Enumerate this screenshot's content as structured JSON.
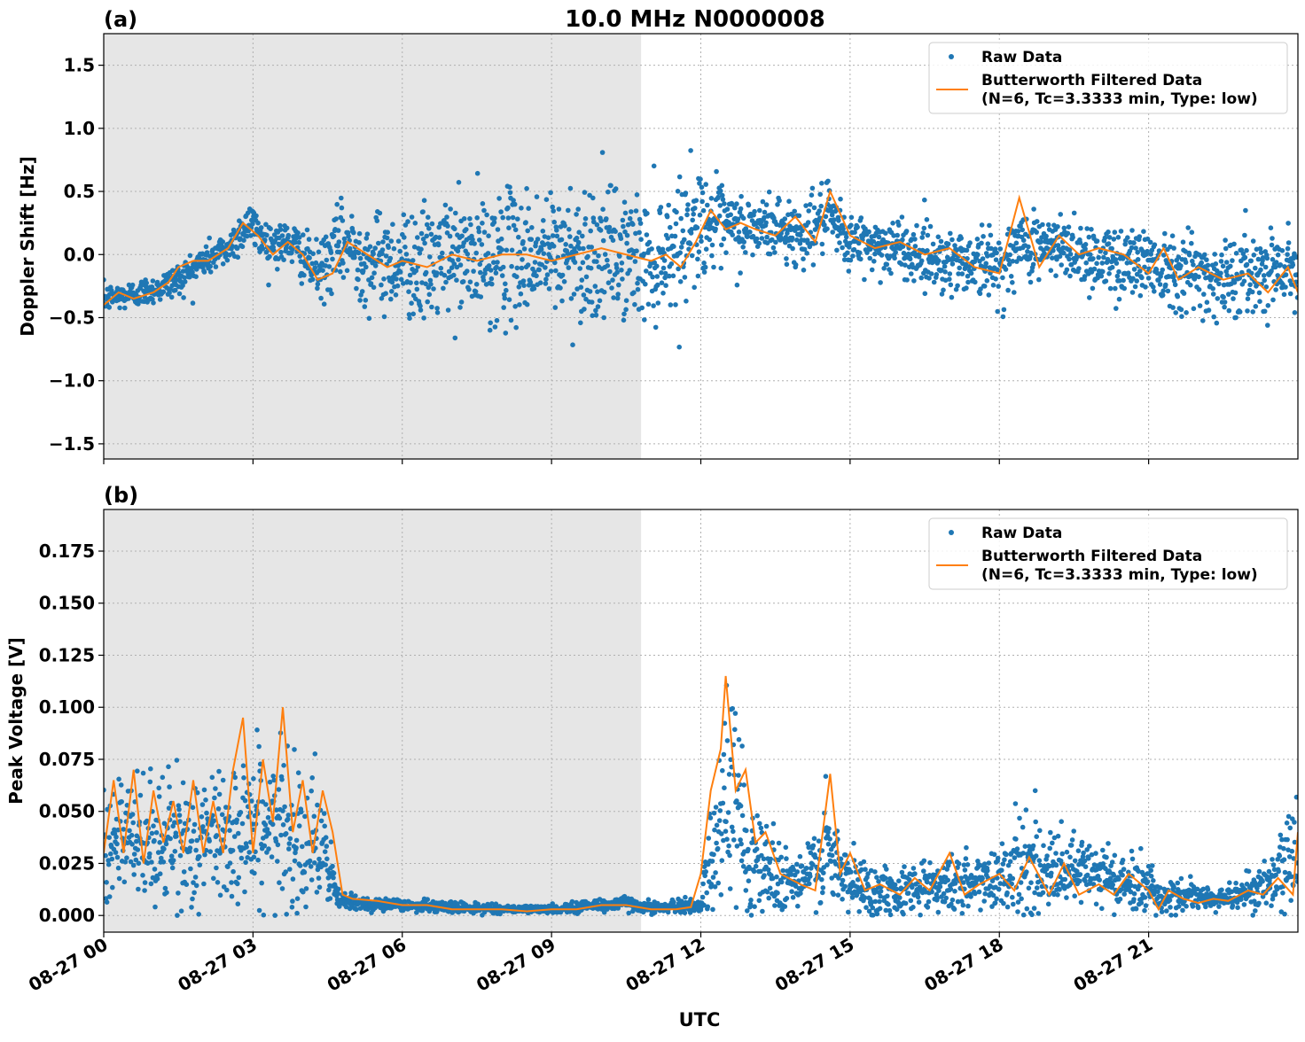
{
  "figure_title": "10.0 MHz N0000008",
  "xlabel": "UTC",
  "colors": {
    "raw": "#1f77b4",
    "filtered": "#ff7f0e",
    "shade": "#e6e6e6",
    "grid": "#b0b0b0"
  },
  "legend": {
    "raw_label": "Raw Data",
    "filtered_line1": "Butterworth Filtered Data",
    "filtered_line2": "(N=6, Tc=3.3333 min, Type: low)"
  },
  "chart_data": [
    {
      "id": "a",
      "type": "scatter",
      "panel_label": "(a)",
      "ylabel": "Doppler Shift [Hz]",
      "xlim_hours": [
        0,
        24
      ],
      "ylim": [
        -1.62,
        1.75
      ],
      "yticks": [
        -1.5,
        -1.0,
        -0.5,
        0.0,
        0.5,
        1.0,
        1.5
      ],
      "ytick_labels": [
        "−1.5",
        "−1.0",
        "−0.5",
        "0.0",
        "0.5",
        "1.0",
        "1.5"
      ],
      "shaded_span_hours": [
        0,
        10.8
      ],
      "grid": true,
      "legend_position": "upper right",
      "series": [
        {
          "name": "Raw Data",
          "style": "points",
          "x_hours": [
            0,
            0.5,
            1,
            1.5,
            2,
            2.5,
            2.9,
            3.3,
            3.8,
            4.3,
            4.8,
            5.3,
            6,
            6.5,
            7,
            7.5,
            8,
            8.5,
            9,
            9.5,
            10,
            10.5,
            11,
            11.5,
            12,
            12.5,
            13,
            13.5,
            14,
            14.5,
            15,
            15.5,
            16,
            16.5,
            17,
            17.5,
            18,
            18.5,
            19,
            19.5,
            20,
            20.5,
            21,
            21.5,
            22,
            22.5,
            23,
            23.5,
            24
          ],
          "y_center": [
            -0.35,
            -0.32,
            -0.28,
            -0.2,
            -0.05,
            0.05,
            0.25,
            0.1,
            0.08,
            -0.15,
            0.1,
            -0.05,
            -0.05,
            -0.1,
            0.0,
            -0.05,
            0.0,
            0.0,
            0.0,
            0.02,
            0.0,
            0.0,
            -0.05,
            0.1,
            0.28,
            0.2,
            0.2,
            0.22,
            0.15,
            0.3,
            0.1,
            0.08,
            0.05,
            0.0,
            -0.05,
            -0.05,
            -0.1,
            0.1,
            0.05,
            0.05,
            -0.05,
            -0.05,
            -0.05,
            -0.1,
            -0.15,
            -0.2,
            -0.15,
            -0.1,
            -0.1
          ],
          "spread": [
            0.12,
            0.12,
            0.12,
            0.15,
            0.15,
            0.15,
            0.2,
            0.18,
            0.2,
            0.25,
            0.35,
            0.4,
            0.45,
            0.5,
            0.5,
            0.55,
            0.55,
            0.55,
            0.55,
            0.6,
            0.6,
            0.55,
            0.55,
            0.5,
            0.45,
            0.35,
            0.3,
            0.28,
            0.28,
            0.28,
            0.25,
            0.25,
            0.25,
            0.28,
            0.28,
            0.3,
            0.3,
            0.3,
            0.3,
            0.3,
            0.3,
            0.32,
            0.32,
            0.35,
            0.35,
            0.35,
            0.35,
            0.3,
            0.3
          ]
        },
        {
          "name": "Butterworth Filtered Data",
          "style": "line",
          "x_hours": [
            0,
            0.3,
            0.6,
            1,
            1.3,
            1.5,
            1.8,
            2.1,
            2.5,
            2.8,
            3.1,
            3.4,
            3.7,
            4,
            4.3,
            4.6,
            4.9,
            5.3,
            5.7,
            6,
            6.5,
            7,
            7.5,
            8,
            8.5,
            9,
            9.5,
            10,
            10.5,
            11,
            11.3,
            11.6,
            11.9,
            12.2,
            12.5,
            12.8,
            13.1,
            13.5,
            13.9,
            14.3,
            14.6,
            15,
            15.5,
            16,
            16.5,
            17,
            17.5,
            18,
            18.4,
            18.8,
            19.2,
            19.6,
            20,
            20.5,
            21,
            21.3,
            21.6,
            22,
            22.5,
            23,
            23.4,
            23.8,
            24
          ],
          "y_values": [
            -0.4,
            -0.3,
            -0.35,
            -0.3,
            -0.22,
            -0.1,
            -0.05,
            -0.05,
            0.05,
            0.25,
            0.15,
            0.0,
            0.1,
            0.0,
            -0.2,
            -0.15,
            0.1,
            0.0,
            -0.1,
            -0.05,
            -0.1,
            0.0,
            -0.05,
            0.0,
            0.0,
            -0.05,
            0.0,
            0.05,
            0.0,
            -0.05,
            0.0,
            -0.1,
            0.1,
            0.35,
            0.2,
            0.25,
            0.2,
            0.15,
            0.3,
            0.1,
            0.5,
            0.15,
            0.05,
            0.1,
            0.0,
            0.05,
            -0.1,
            -0.15,
            0.45,
            -0.1,
            0.15,
            0.0,
            0.05,
            0.0,
            -0.15,
            0.05,
            -0.2,
            -0.1,
            -0.2,
            -0.15,
            -0.3,
            -0.1,
            -0.3
          ]
        }
      ]
    },
    {
      "id": "b",
      "type": "scatter",
      "panel_label": "(b)",
      "ylabel": "Peak Voltage [V]",
      "xlim_hours": [
        0,
        24
      ],
      "ylim": [
        -0.008,
        0.195
      ],
      "yticks": [
        0.0,
        0.025,
        0.05,
        0.075,
        0.1,
        0.125,
        0.15,
        0.175
      ],
      "ytick_labels": [
        "0.000",
        "0.025",
        "0.050",
        "0.075",
        "0.100",
        "0.125",
        "0.150",
        "0.175"
      ],
      "xticks_hours": [
        0,
        3,
        6,
        9,
        12,
        15,
        18,
        21
      ],
      "xtick_labels": [
        "08-27 00",
        "08-27 03",
        "08-27 06",
        "08-27 09",
        "08-27 12",
        "08-27 15",
        "08-27 18",
        "08-27 21"
      ],
      "shaded_span_hours": [
        0,
        10.8
      ],
      "grid": true,
      "legend_position": "upper right",
      "series": [
        {
          "name": "Raw Data",
          "style": "points",
          "x_hours": [
            0,
            0.5,
            1,
            1.5,
            2,
            2.5,
            3,
            3.5,
            4,
            4.4,
            4.7,
            5,
            6,
            7,
            8,
            9,
            10,
            10.5,
            11,
            11.5,
            12,
            12.3,
            12.6,
            13,
            13.5,
            14,
            14.5,
            15,
            15.5,
            16,
            16.5,
            17,
            17.5,
            18,
            18.5,
            19,
            19.5,
            20,
            20.5,
            21,
            21.3,
            21.7,
            22,
            22.5,
            23,
            23.5,
            24
          ],
          "y_center": [
            0.04,
            0.035,
            0.035,
            0.035,
            0.035,
            0.04,
            0.045,
            0.04,
            0.04,
            0.03,
            0.008,
            0.006,
            0.005,
            0.004,
            0.003,
            0.003,
            0.005,
            0.006,
            0.004,
            0.004,
            0.005,
            0.04,
            0.06,
            0.03,
            0.02,
            0.015,
            0.03,
            0.015,
            0.012,
            0.012,
            0.015,
            0.015,
            0.015,
            0.02,
            0.025,
            0.02,
            0.02,
            0.02,
            0.015,
            0.015,
            0.008,
            0.01,
            0.008,
            0.008,
            0.012,
            0.015,
            0.03
          ],
          "spread": [
            0.03,
            0.03,
            0.035,
            0.035,
            0.035,
            0.04,
            0.04,
            0.04,
            0.04,
            0.03,
            0.006,
            0.004,
            0.003,
            0.003,
            0.002,
            0.002,
            0.004,
            0.004,
            0.003,
            0.003,
            0.004,
            0.05,
            0.055,
            0.035,
            0.02,
            0.015,
            0.03,
            0.02,
            0.012,
            0.012,
            0.015,
            0.015,
            0.015,
            0.02,
            0.025,
            0.02,
            0.02,
            0.02,
            0.015,
            0.015,
            0.006,
            0.008,
            0.006,
            0.006,
            0.01,
            0.015,
            0.03
          ]
        },
        {
          "name": "Butterworth Filtered Data",
          "style": "line",
          "x_hours": [
            0,
            0.2,
            0.4,
            0.6,
            0.8,
            1,
            1.2,
            1.4,
            1.6,
            1.8,
            2,
            2.2,
            2.4,
            2.6,
            2.8,
            3,
            3.2,
            3.4,
            3.6,
            3.8,
            4,
            4.2,
            4.4,
            4.6,
            4.8,
            5,
            5.5,
            6,
            6.5,
            7,
            7.5,
            8,
            8.5,
            9,
            9.5,
            10,
            10.5,
            11,
            11.5,
            11.8,
            12,
            12.2,
            12.4,
            12.5,
            12.7,
            12.9,
            13.1,
            13.3,
            13.6,
            14,
            14.3,
            14.6,
            14.8,
            15,
            15.3,
            15.6,
            16,
            16.3,
            16.6,
            17,
            17.3,
            17.6,
            18,
            18.3,
            18.6,
            19,
            19.3,
            19.6,
            20,
            20.3,
            20.6,
            21,
            21.2,
            21.4,
            21.7,
            22,
            22.3,
            22.6,
            23,
            23.3,
            23.6,
            23.9,
            24
          ],
          "y_values": [
            0.03,
            0.065,
            0.03,
            0.07,
            0.025,
            0.06,
            0.035,
            0.055,
            0.03,
            0.065,
            0.03,
            0.055,
            0.03,
            0.07,
            0.095,
            0.03,
            0.075,
            0.045,
            0.1,
            0.04,
            0.065,
            0.03,
            0.06,
            0.04,
            0.01,
            0.008,
            0.007,
            0.005,
            0.005,
            0.003,
            0.003,
            0.003,
            0.002,
            0.003,
            0.003,
            0.005,
            0.005,
            0.003,
            0.003,
            0.004,
            0.02,
            0.06,
            0.08,
            0.115,
            0.06,
            0.07,
            0.035,
            0.04,
            0.02,
            0.015,
            0.012,
            0.068,
            0.02,
            0.03,
            0.012,
            0.015,
            0.01,
            0.018,
            0.012,
            0.03,
            0.01,
            0.015,
            0.02,
            0.012,
            0.028,
            0.01,
            0.025,
            0.01,
            0.015,
            0.01,
            0.02,
            0.012,
            0.003,
            0.012,
            0.008,
            0.006,
            0.008,
            0.007,
            0.012,
            0.01,
            0.018,
            0.01,
            0.04
          ]
        }
      ]
    }
  ]
}
